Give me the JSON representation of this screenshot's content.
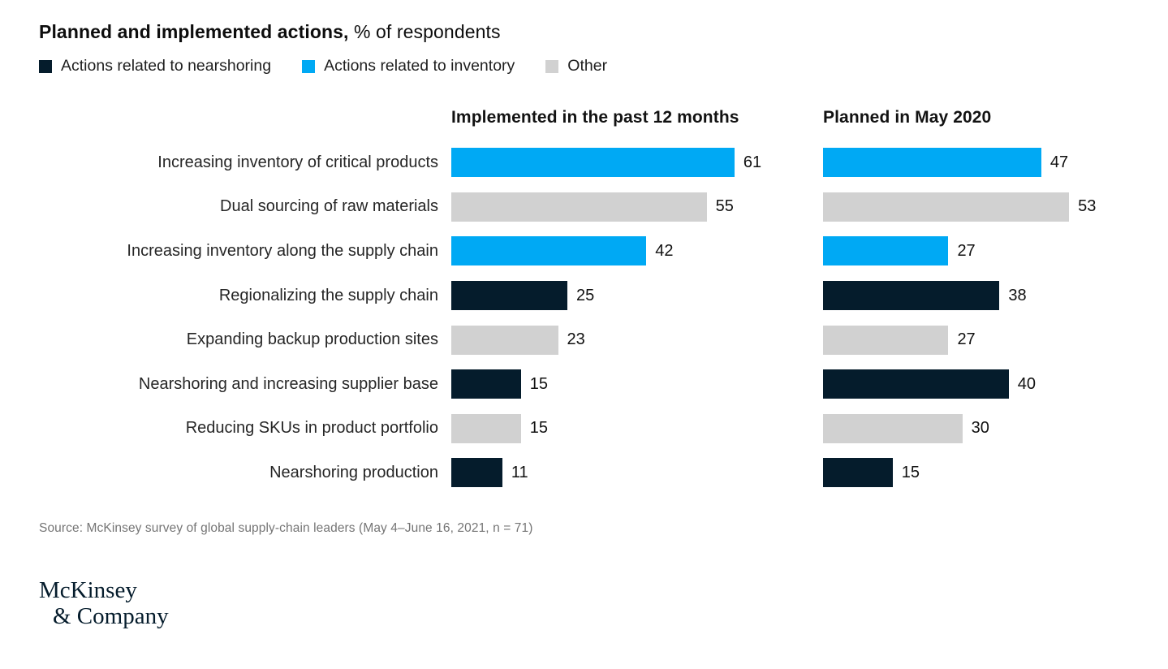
{
  "title": {
    "bold": "Planned and implemented actions,",
    "rest": " % of respondents"
  },
  "legend": [
    {
      "label": "Actions related to nearshoring",
      "color": "#051c2c"
    },
    {
      "label": "Actions related to inventory",
      "color": "#00a9f4"
    },
    {
      "label": "Other",
      "color": "#d1d1d1"
    }
  ],
  "panels": [
    "Implemented in the past 12 months",
    "Planned in May 2020"
  ],
  "chart_data": {
    "type": "bar",
    "orientation": "horizontal",
    "title": "Planned and implemented actions, % of respondents",
    "categories": [
      "Increasing inventory of critical products",
      "Dual sourcing of raw materials",
      "Increasing inventory along the supply chain",
      "Regionalizing the supply chain",
      "Expanding backup production sites",
      "Nearshoring and increasing supplier base",
      "Reducing SKUs in product portfolio",
      "Nearshoring production"
    ],
    "series": [
      {
        "name": "Implemented in the past 12 months",
        "values": [
          61,
          55,
          42,
          25,
          23,
          15,
          15,
          11
        ]
      },
      {
        "name": "Planned in May 2020",
        "values": [
          47,
          53,
          27,
          38,
          27,
          40,
          30,
          15
        ]
      }
    ],
    "category_groups": [
      "inventory",
      "other",
      "inventory",
      "nearshoring",
      "other",
      "nearshoring",
      "other",
      "nearshoring"
    ],
    "colors": {
      "nearshoring": "#051c2c",
      "inventory": "#00a9f4",
      "other": "#d1d1d1"
    },
    "xlim": [
      0,
      66
    ],
    "value_labels": true,
    "legend_position": "top",
    "grid": false
  },
  "source": "Source: McKinsey survey of global supply-chain leaders (May 4–June 16, 2021, n = 71)",
  "logo": {
    "line1": "McKinsey",
    "line2": "& Company"
  }
}
